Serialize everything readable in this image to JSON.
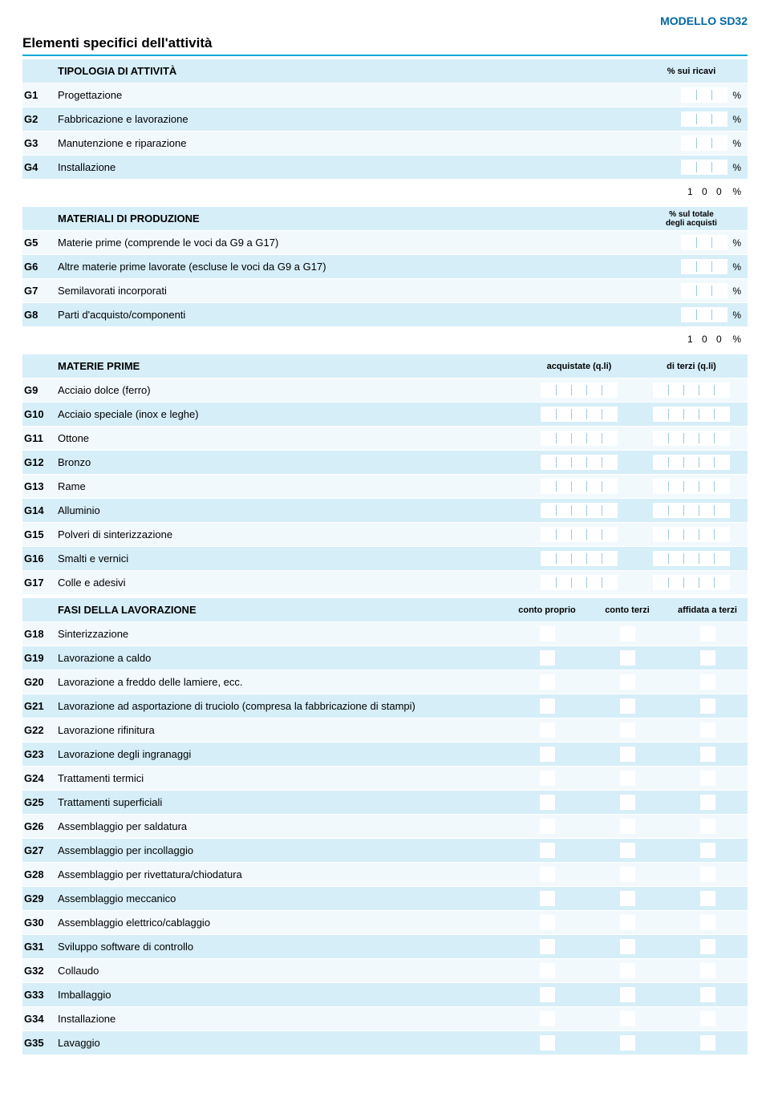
{
  "colors": {
    "accent": "#00a8d6",
    "band": "#d6eef8",
    "alt": "#f2f9fd",
    "model": "#0066a4",
    "tick": "#9cc8de",
    "white": "#ffffff"
  },
  "model_code": "MODELLO SD32",
  "main_title": "Elementi specifici dell'attività",
  "sections": {
    "tipologia": {
      "heading": "TIPOLOGIA DI ATTIVITÀ",
      "col_header": "% sui ricavi",
      "sum": "1 0 0",
      "items": [
        {
          "code": "G1",
          "label": "Progettazione"
        },
        {
          "code": "G2",
          "label": "Fabbricazione e lavorazione"
        },
        {
          "code": "G3",
          "label": "Manutenzione e riparazione"
        },
        {
          "code": "G4",
          "label": "Installazione"
        }
      ]
    },
    "materiali": {
      "heading": "MATERIALI DI PRODUZIONE",
      "col_header": "% sul totale\ndegli acquisti",
      "sum": "1 0 0",
      "items": [
        {
          "code": "G5",
          "label": "Materie prime (comprende le voci da G9 a G17)"
        },
        {
          "code": "G6",
          "label": "Altre materie prime lavorate  (escluse le voci da G9 a G17)"
        },
        {
          "code": "G7",
          "label": "Semilavorati incorporati"
        },
        {
          "code": "G8",
          "label": "Parti d'acquisto/componenti"
        }
      ]
    },
    "materie_prime": {
      "heading": "MATERIE PRIME",
      "col1": "acquistate (q.li)",
      "col2": "di terzi (q.li)",
      "items": [
        {
          "code": "G9",
          "label": "Acciaio dolce (ferro)"
        },
        {
          "code": "G10",
          "label": "Acciaio speciale (inox e leghe)"
        },
        {
          "code": "G11",
          "label": "Ottone"
        },
        {
          "code": "G12",
          "label": "Bronzo"
        },
        {
          "code": "G13",
          "label": "Rame"
        },
        {
          "code": "G14",
          "label": "Alluminio"
        },
        {
          "code": "G15",
          "label": "Polveri di sinterizzazione"
        },
        {
          "code": "G16",
          "label": "Smalti e vernici"
        },
        {
          "code": "G17",
          "label": "Colle e adesivi"
        }
      ]
    },
    "fasi": {
      "heading": "FASI DELLA LAVORAZIONE",
      "col1": "conto proprio",
      "col2": "conto terzi",
      "col3": "affidata a terzi",
      "items": [
        {
          "code": "G18",
          "label": "Sinterizzazione"
        },
        {
          "code": "G19",
          "label": "Lavorazione a caldo"
        },
        {
          "code": "G20",
          "label": "Lavorazione  a freddo delle lamiere, ecc."
        },
        {
          "code": "G21",
          "label": "Lavorazione ad asportazione di truciolo (compresa la fabbricazione di stampi)"
        },
        {
          "code": "G22",
          "label": "Lavorazione rifinitura"
        },
        {
          "code": "G23",
          "label": "Lavorazione degli ingranaggi"
        },
        {
          "code": "G24",
          "label": "Trattamenti termici"
        },
        {
          "code": "G25",
          "label": "Trattamenti superficiali"
        },
        {
          "code": "G26",
          "label": "Assemblaggio per saldatura"
        },
        {
          "code": "G27",
          "label": "Assemblaggio per incollaggio"
        },
        {
          "code": "G28",
          "label": "Assemblaggio per rivettatura/chiodatura"
        },
        {
          "code": "G29",
          "label": "Assemblaggio meccanico"
        },
        {
          "code": "G30",
          "label": "Assemblaggio elettrico/cablaggio"
        },
        {
          "code": "G31",
          "label": "Sviluppo software di controllo"
        },
        {
          "code": "G32",
          "label": "Collaudo"
        },
        {
          "code": "G33",
          "label": "Imballaggio"
        },
        {
          "code": "G34",
          "label": "Installazione"
        },
        {
          "code": "G35",
          "label": "Lavaggio"
        }
      ]
    }
  },
  "percent_sign": "%"
}
